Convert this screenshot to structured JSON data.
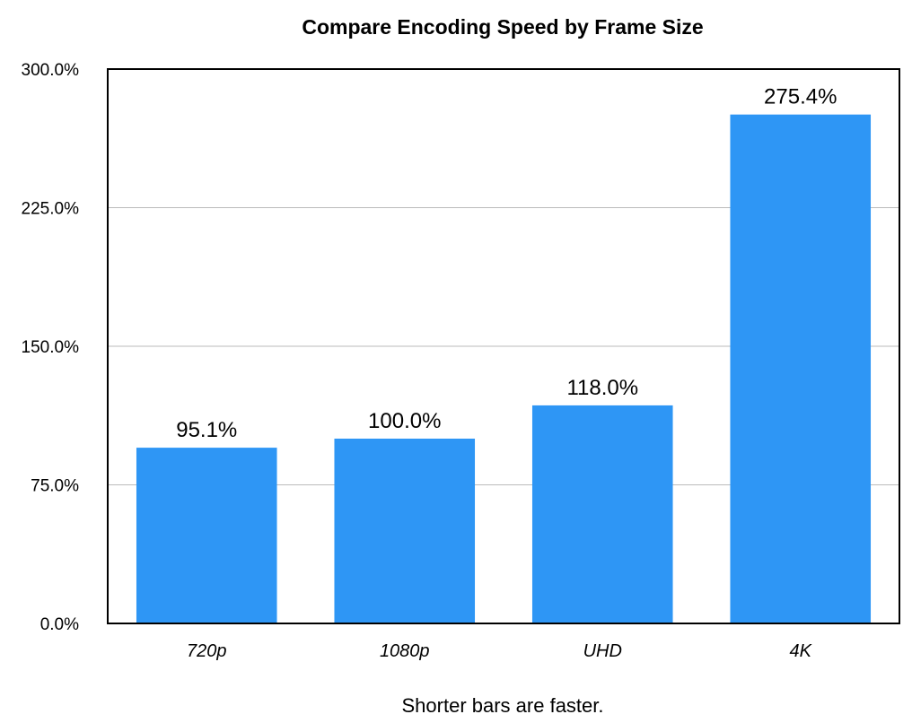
{
  "chart_data": {
    "type": "bar",
    "title": "Compare Encoding Speed by Frame Size",
    "caption": "Shorter bars are faster.",
    "categories": [
      "720p",
      "1080p",
      "UHD",
      "4K"
    ],
    "values": [
      95.1,
      100.0,
      118.0,
      275.4
    ],
    "data_labels": [
      "95.1%",
      "100.0%",
      "118.0%",
      "275.4%"
    ],
    "y_ticks": [
      0,
      75,
      150,
      225,
      300
    ],
    "y_tick_labels": [
      "0.0%",
      "75.0%",
      "150.0%",
      "225.0%",
      "300.0%"
    ],
    "ylim": [
      0,
      300
    ],
    "xlabel": "",
    "ylabel": "",
    "grid": true,
    "legend": "none",
    "colors": {
      "bar": "#2e96f5",
      "grid": "#bbbbbb",
      "axis": "#000000",
      "text": "#000000"
    }
  }
}
